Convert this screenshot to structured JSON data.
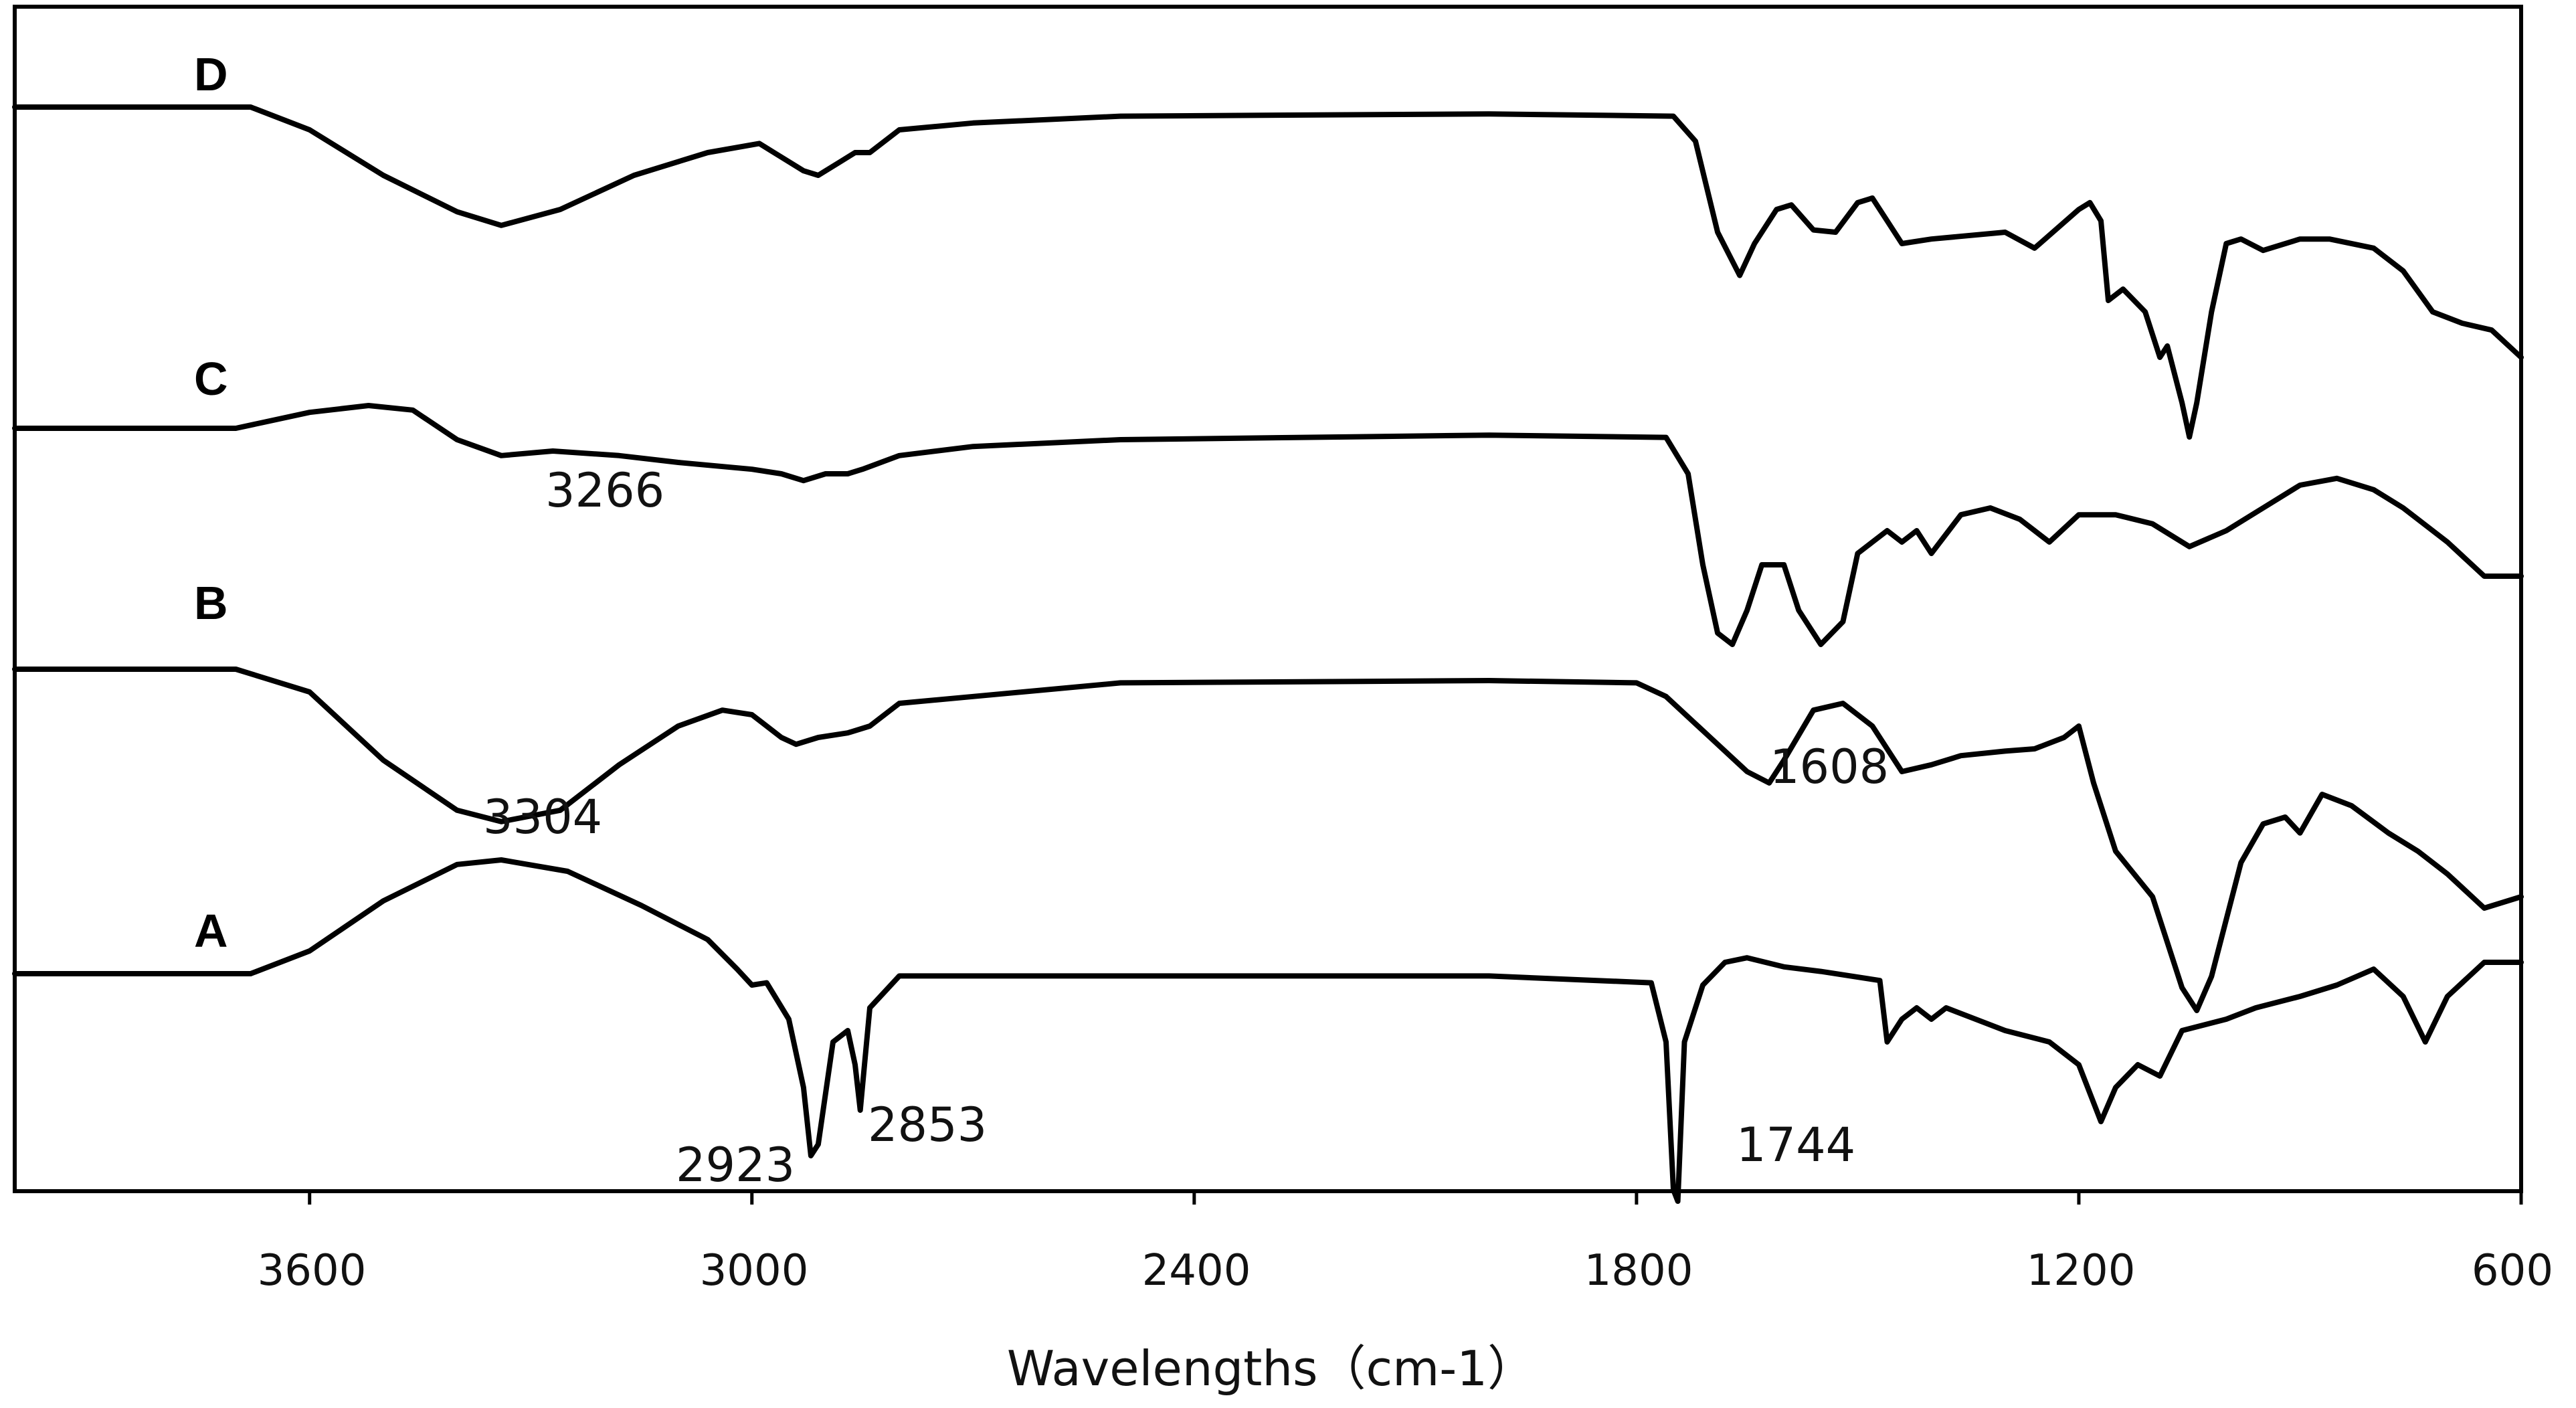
{
  "chart_data": {
    "type": "line",
    "title": "",
    "xlabel": "Wavelengths（cm-1）",
    "ylabel": "",
    "xlim": [
      4000,
      600
    ],
    "x_reversed": true,
    "x_ticks": [
      "3600",
      "3000",
      "2400",
      "1800",
      "1200",
      "600"
    ],
    "y_axis_visible": false,
    "grid": false,
    "series": [
      {
        "name": "D",
        "offset": 3,
        "points": [
          [
            4000,
            0
          ],
          [
            3680,
            0
          ],
          [
            3600,
            -0.1
          ],
          [
            3500,
            -0.3
          ],
          [
            3400,
            -0.46
          ],
          [
            3340,
            -0.52
          ],
          [
            3260,
            -0.45
          ],
          [
            3160,
            -0.3
          ],
          [
            3060,
            -0.2
          ],
          [
            2990,
            -0.16
          ],
          [
            2970,
            -0.2
          ],
          [
            2930,
            -0.28
          ],
          [
            2910,
            -0.3
          ],
          [
            2880,
            -0.24
          ],
          [
            2860,
            -0.2
          ],
          [
            2840,
            -0.2
          ],
          [
            2800,
            -0.1
          ],
          [
            2700,
            -0.07
          ],
          [
            2500,
            -0.04
          ],
          [
            2000,
            -0.03
          ],
          [
            1750,
            -0.04
          ],
          [
            1720,
            -0.15
          ],
          [
            1690,
            -0.55
          ],
          [
            1660,
            -0.74
          ],
          [
            1640,
            -0.6
          ],
          [
            1610,
            -0.45
          ],
          [
            1590,
            -0.43
          ],
          [
            1560,
            -0.54
          ],
          [
            1530,
            -0.55
          ],
          [
            1500,
            -0.42
          ],
          [
            1480,
            -0.4
          ],
          [
            1460,
            -0.5
          ],
          [
            1440,
            -0.6
          ],
          [
            1400,
            -0.58
          ],
          [
            1300,
            -0.55
          ],
          [
            1260,
            -0.62
          ],
          [
            1200,
            -0.45
          ],
          [
            1185,
            -0.42
          ],
          [
            1170,
            -0.5
          ],
          [
            1160,
            -0.85
          ],
          [
            1140,
            -0.8
          ],
          [
            1110,
            -0.9
          ],
          [
            1090,
            -1.1
          ],
          [
            1080,
            -1.05
          ],
          [
            1060,
            -1.3
          ],
          [
            1050,
            -1.45
          ],
          [
            1040,
            -1.3
          ],
          [
            1020,
            -0.9
          ],
          [
            1000,
            -0.6
          ],
          [
            980,
            -0.58
          ],
          [
            950,
            -0.63
          ],
          [
            900,
            -0.58
          ],
          [
            860,
            -0.58
          ],
          [
            800,
            -0.62
          ],
          [
            760,
            -0.72
          ],
          [
            720,
            -0.9
          ],
          [
            680,
            -0.95
          ],
          [
            640,
            -0.98
          ],
          [
            600,
            -1.1
          ]
        ]
      },
      {
        "name": "C",
        "offset": 2,
        "points": [
          [
            4000,
            0
          ],
          [
            3700,
            0
          ],
          [
            3600,
            0.07
          ],
          [
            3520,
            0.1
          ],
          [
            3460,
            0.08
          ],
          [
            3400,
            -0.05
          ],
          [
            3340,
            -0.12
          ],
          [
            3270,
            -0.1
          ],
          [
            3180,
            -0.12
          ],
          [
            3100,
            -0.15
          ],
          [
            3000,
            -0.18
          ],
          [
            2960,
            -0.2
          ],
          [
            2930,
            -0.23
          ],
          [
            2900,
            -0.2
          ],
          [
            2870,
            -0.2
          ],
          [
            2850,
            -0.18
          ],
          [
            2800,
            -0.12
          ],
          [
            2700,
            -0.08
          ],
          [
            2500,
            -0.05
          ],
          [
            2000,
            -0.03
          ],
          [
            1760,
            -0.04
          ],
          [
            1730,
            -0.2
          ],
          [
            1710,
            -0.6
          ],
          [
            1690,
            -0.9
          ],
          [
            1670,
            -0.95
          ],
          [
            1650,
            -0.8
          ],
          [
            1630,
            -0.6
          ],
          [
            1600,
            -0.6
          ],
          [
            1580,
            -0.8
          ],
          [
            1550,
            -0.95
          ],
          [
            1520,
            -0.85
          ],
          [
            1500,
            -0.55
          ],
          [
            1480,
            -0.5
          ],
          [
            1460,
            -0.45
          ],
          [
            1440,
            -0.5
          ],
          [
            1420,
            -0.45
          ],
          [
            1400,
            -0.55
          ],
          [
            1360,
            -0.38
          ],
          [
            1320,
            -0.35
          ],
          [
            1280,
            -0.4
          ],
          [
            1240,
            -0.5
          ],
          [
            1200,
            -0.38
          ],
          [
            1150,
            -0.38
          ],
          [
            1100,
            -0.42
          ],
          [
            1050,
            -0.52
          ],
          [
            1000,
            -0.45
          ],
          [
            950,
            -0.35
          ],
          [
            900,
            -0.25
          ],
          [
            850,
            -0.22
          ],
          [
            800,
            -0.27
          ],
          [
            760,
            -0.35
          ],
          [
            700,
            -0.5
          ],
          [
            650,
            -0.65
          ],
          [
            600,
            -0.65
          ]
        ]
      },
      {
        "name": "B",
        "offset": 1,
        "points": [
          [
            4000,
            0
          ],
          [
            3700,
            0
          ],
          [
            3600,
            -0.1
          ],
          [
            3500,
            -0.4
          ],
          [
            3400,
            -0.62
          ],
          [
            3340,
            -0.67
          ],
          [
            3260,
            -0.62
          ],
          [
            3180,
            -0.42
          ],
          [
            3100,
            -0.25
          ],
          [
            3040,
            -0.18
          ],
          [
            3000,
            -0.2
          ],
          [
            2960,
            -0.3
          ],
          [
            2940,
            -0.33
          ],
          [
            2910,
            -0.3
          ],
          [
            2870,
            -0.28
          ],
          [
            2840,
            -0.25
          ],
          [
            2800,
            -0.15
          ],
          [
            2700,
            -0.12
          ],
          [
            2500,
            -0.06
          ],
          [
            2000,
            -0.05
          ],
          [
            1800,
            -0.06
          ],
          [
            1760,
            -0.12
          ],
          [
            1700,
            -0.3
          ],
          [
            1650,
            -0.45
          ],
          [
            1620,
            -0.5
          ],
          [
            1600,
            -0.4
          ],
          [
            1560,
            -0.18
          ],
          [
            1520,
            -0.15
          ],
          [
            1480,
            -0.25
          ],
          [
            1440,
            -0.45
          ],
          [
            1400,
            -0.42
          ],
          [
            1360,
            -0.38
          ],
          [
            1300,
            -0.36
          ],
          [
            1260,
            -0.35
          ],
          [
            1220,
            -0.3
          ],
          [
            1200,
            -0.25
          ],
          [
            1180,
            -0.5
          ],
          [
            1150,
            -0.8
          ],
          [
            1100,
            -1.0
          ],
          [
            1060,
            -1.4
          ],
          [
            1040,
            -1.5
          ],
          [
            1020,
            -1.35
          ],
          [
            980,
            -0.85
          ],
          [
            950,
            -0.68
          ],
          [
            920,
            -0.65
          ],
          [
            900,
            -0.72
          ],
          [
            870,
            -0.55
          ],
          [
            830,
            -0.6
          ],
          [
            780,
            -0.72
          ],
          [
            740,
            -0.8
          ],
          [
            700,
            -0.9
          ],
          [
            650,
            -1.05
          ],
          [
            600,
            -1.0
          ]
        ]
      },
      {
        "name": "A",
        "offset": 0,
        "points": [
          [
            4000,
            0
          ],
          [
            3680,
            0
          ],
          [
            3600,
            0.1
          ],
          [
            3500,
            0.32
          ],
          [
            3400,
            0.48
          ],
          [
            3340,
            0.5
          ],
          [
            3250,
            0.45
          ],
          [
            3150,
            0.3
          ],
          [
            3060,
            0.15
          ],
          [
            3020,
            0.02
          ],
          [
            3000,
            -0.05
          ],
          [
            2980,
            -0.04
          ],
          [
            2950,
            -0.2
          ],
          [
            2930,
            -0.5
          ],
          [
            2920,
            -0.8
          ],
          [
            2910,
            -0.75
          ],
          [
            2890,
            -0.3
          ],
          [
            2870,
            -0.25
          ],
          [
            2860,
            -0.4
          ],
          [
            2853,
            -0.6
          ],
          [
            2840,
            -0.15
          ],
          [
            2800,
            -0.01
          ],
          [
            2500,
            -0.01
          ],
          [
            2000,
            -0.01
          ],
          [
            1780,
            -0.04
          ],
          [
            1760,
            -0.3
          ],
          [
            1750,
            -0.95
          ],
          [
            1744,
            -1.0
          ],
          [
            1735,
            -0.3
          ],
          [
            1710,
            -0.05
          ],
          [
            1680,
            0.05
          ],
          [
            1650,
            0.07
          ],
          [
            1600,
            0.03
          ],
          [
            1550,
            0.01
          ],
          [
            1470,
            -0.03
          ],
          [
            1460,
            -0.3
          ],
          [
            1440,
            -0.2
          ],
          [
            1420,
            -0.15
          ],
          [
            1400,
            -0.2
          ],
          [
            1380,
            -0.15
          ],
          [
            1300,
            -0.25
          ],
          [
            1240,
            -0.3
          ],
          [
            1200,
            -0.4
          ],
          [
            1170,
            -0.65
          ],
          [
            1150,
            -0.5
          ],
          [
            1120,
            -0.4
          ],
          [
            1090,
            -0.45
          ],
          [
            1060,
            -0.25
          ],
          [
            1000,
            -0.2
          ],
          [
            960,
            -0.15
          ],
          [
            900,
            -0.1
          ],
          [
            850,
            -0.05
          ],
          [
            800,
            0.02
          ],
          [
            760,
            -0.1
          ],
          [
            730,
            -0.3
          ],
          [
            700,
            -0.1
          ],
          [
            650,
            0.05
          ],
          [
            600,
            0.05
          ]
        ]
      }
    ],
    "annotations": [
      {
        "text": "3266",
        "x": 3230,
        "series": "C"
      },
      {
        "text": "3304",
        "x": 3290,
        "series": "B"
      },
      {
        "text": "1608",
        "x": 1520,
        "series": "B"
      },
      {
        "text": "2923",
        "x": 2920,
        "series": "A"
      },
      {
        "text": "2853",
        "x": 2780,
        "series": "A"
      },
      {
        "text": "1744",
        "x": 1630,
        "series": "A"
      }
    ]
  }
}
